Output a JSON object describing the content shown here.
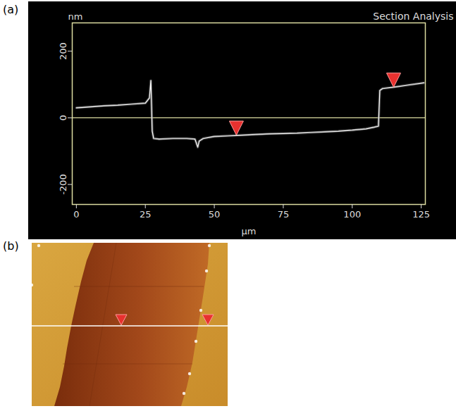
{
  "chart_data": [
    {
      "panel": "(a)",
      "type": "line",
      "title": "Section Analysis",
      "y_label": "nm",
      "x_label": "µm",
      "x": [
        0,
        5,
        10,
        15,
        20,
        25,
        26.5,
        27,
        27.5,
        28,
        30,
        35,
        40,
        43,
        44,
        44.5,
        46,
        50,
        55,
        60,
        65,
        70,
        75,
        80,
        85,
        90,
        95,
        100,
        105,
        108,
        109.5,
        110,
        111,
        115,
        120,
        126
      ],
      "values": [
        30,
        33,
        36,
        38,
        41,
        44,
        60,
        112,
        -40,
        -62,
        -64,
        -62,
        -62,
        -64,
        -88,
        -70,
        -62,
        -56,
        -54,
        -52,
        -50,
        -48,
        -47,
        -46,
        -44,
        -42,
        -40,
        -37,
        -33,
        -28,
        -25,
        82,
        88,
        92,
        98,
        105
      ],
      "color": "#ffffff",
      "xlim": [
        -1.5,
        126.5
      ],
      "ylim": [
        -260,
        285
      ],
      "xticks": [
        0,
        25,
        50,
        75,
        100,
        125
      ],
      "yticks": [
        -200,
        0,
        200
      ],
      "baseline": 0,
      "markers": {
        "x": [
          58,
          115
        ],
        "y": [
          -52,
          92
        ]
      },
      "grid": false
    },
    {
      "panel": "(b)",
      "type": "image"
    }
  ]
}
